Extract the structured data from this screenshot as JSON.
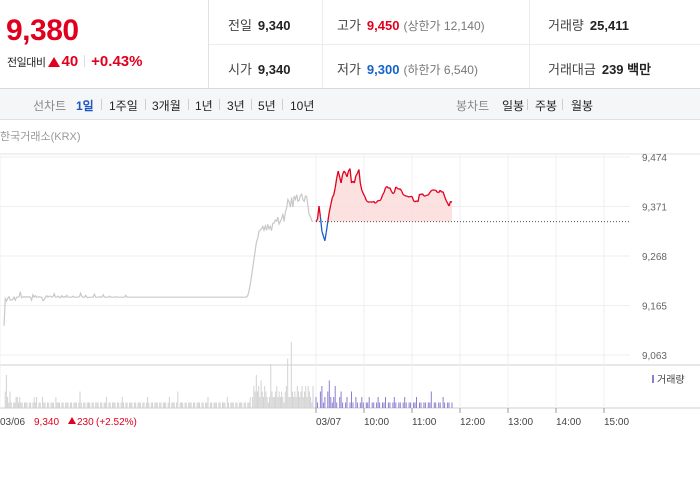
{
  "quote": {
    "price": "9,380",
    "change_label": "전일대비",
    "change_value": "40",
    "change_rate": "+0.43%",
    "prev_close_label": "전일",
    "prev_close": "9,340",
    "open_label": "시가",
    "open": "9,340",
    "high_label": "고가",
    "high": "9,450",
    "upper_limit": "(상한가 12,140)",
    "low_label": "저가",
    "low": "9,300",
    "lower_limit": "(하한가 6,540)",
    "volume_label": "거래량",
    "volume": "25,411",
    "value_label": "거래대금",
    "trade_value": "239 백만",
    "colors": {
      "up": "#e0001e",
      "down": "#1563c7"
    }
  },
  "tabs": {
    "line_label": "선차트",
    "periods": [
      "1일",
      "1주일",
      "3개월",
      "1년",
      "3년",
      "5년",
      "10년"
    ],
    "active_period": "1일",
    "candle_label": "봉차트",
    "candles": [
      "일봉",
      "주봉",
      "월봉"
    ]
  },
  "chart_data": {
    "type": "line",
    "source": "한국거래소(KRX)",
    "yticks": [
      "9,474",
      "9,371",
      "9,268",
      "9,165",
      "9,063"
    ],
    "ylim": [
      9063,
      9474
    ],
    "prev_close": 9340,
    "xticks": [
      "03/07",
      "10:00",
      "11:00",
      "12:00",
      "13:00",
      "14:00",
      "15:00"
    ],
    "prev_day": {
      "date": "03/06",
      "summary_price": "9,340",
      "summary_change": "230",
      "summary_rate": "(+2.52%)",
      "price_series": [
        9124,
        9180,
        9175,
        9181,
        9184,
        9177,
        9177,
        9179,
        9183,
        9177,
        9183,
        9183,
        9184,
        9194,
        9182,
        9183,
        9184,
        9183,
        9184,
        9183,
        9184,
        9183,
        9177,
        9188,
        9183,
        9186,
        9183,
        9183,
        9184,
        9183,
        9183,
        9176,
        9178,
        9183,
        9186,
        9183,
        9185,
        9185,
        9183,
        9184,
        9190,
        9183,
        9183,
        9185,
        9183,
        9182,
        9186,
        9183,
        9184,
        9183,
        9187,
        9183,
        9183,
        9183,
        9183,
        9185,
        9183,
        9183,
        9183,
        9183,
        9184,
        9191,
        9184,
        9183,
        9183,
        9187,
        9183,
        9182,
        9183,
        9183,
        9183,
        9183,
        9189,
        9183,
        9183,
        9183,
        9184,
        9183,
        9183,
        9188,
        9183,
        9183,
        9183,
        9183,
        9185,
        9183,
        9183,
        9183,
        9183,
        9184,
        9183,
        9183,
        9183,
        9183,
        9183,
        9183,
        9183,
        9187,
        9183,
        9183,
        9183,
        9183,
        9183,
        9183,
        9183,
        9183,
        9183,
        9183,
        9183,
        9183,
        9183,
        9183,
        9183,
        9183,
        9183,
        9183,
        9183,
        9183,
        9183,
        9183,
        9183,
        9183,
        9183,
        9183,
        9183,
        9183,
        9183,
        9183,
        9183,
        9183,
        9183,
        9183,
        9183,
        9183,
        9183,
        9183,
        9183,
        9183,
        9183,
        9183,
        9183,
        9183,
        9183,
        9183,
        9183,
        9183,
        9183,
        9183,
        9183,
        9183,
        9183,
        9183,
        9183,
        9183,
        9183,
        9183,
        9183,
        9183,
        9183,
        9183,
        9183,
        9183,
        9183,
        9183,
        9183,
        9183,
        9183,
        9183,
        9183,
        9183,
        9183,
        9183,
        9183,
        9183,
        9183,
        9183,
        9183,
        9183,
        9183,
        9183,
        9183,
        9183,
        9183,
        9183,
        9183,
        9183,
        9183,
        9183,
        9183,
        9183,
        9183,
        9183,
        9183,
        9183,
        9186,
        9195,
        9209,
        9226,
        9244,
        9262,
        9280,
        9298,
        9305,
        9320,
        9322,
        9325,
        9330,
        9322,
        9331,
        9322,
        9334,
        9325,
        9330,
        9321,
        9336,
        9337,
        9343,
        9341,
        9349,
        9335,
        9340,
        9346,
        9356,
        9340,
        9360,
        9368,
        9386,
        9381,
        9370,
        9390,
        9370,
        9393,
        9386,
        9396,
        9382,
        9384,
        9394,
        9397,
        9385,
        9382,
        9393,
        9392,
        9371,
        9354,
        9350,
        9342,
        9340
      ],
      "volume_series": [
        0,
        3,
        6,
        2,
        1,
        3,
        1,
        0,
        1,
        1,
        2,
        2,
        1,
        2,
        1,
        1,
        0,
        1,
        1,
        1,
        0,
        1,
        1,
        0,
        1,
        2,
        1,
        2,
        0,
        1,
        1,
        0,
        2,
        1,
        1,
        0,
        1,
        1,
        0,
        1,
        1,
        1,
        0,
        2,
        1,
        1,
        1,
        0,
        1,
        1,
        0,
        1,
        1,
        1,
        0,
        1,
        1,
        0,
        1,
        1,
        1,
        0,
        1,
        3,
        1,
        0,
        1,
        1,
        0,
        1,
        1,
        1,
        0,
        1,
        1,
        0,
        1,
        1,
        1,
        0,
        1,
        1,
        0,
        1,
        1,
        2,
        0,
        1,
        1,
        0,
        1,
        1,
        1,
        0,
        1,
        1,
        0,
        1,
        2,
        1,
        0,
        1,
        1,
        0,
        1,
        1,
        1,
        0,
        1,
        1,
        0,
        1,
        1,
        1,
        0,
        1,
        1,
        0,
        1,
        2,
        1,
        0,
        1,
        1,
        0,
        1,
        1,
        1,
        0,
        1,
        1,
        0,
        1,
        1,
        1,
        0,
        1,
        2,
        0,
        1,
        1,
        1,
        0,
        1,
        3,
        0,
        1,
        1,
        1,
        0,
        1,
        1,
        0,
        1,
        1,
        1,
        0,
        1,
        1,
        0,
        1,
        1,
        1,
        0,
        1,
        1,
        0,
        1,
        1,
        2,
        0,
        1,
        1,
        0,
        1,
        1,
        1,
        0,
        1,
        1,
        0,
        1,
        1,
        1,
        0,
        2,
        1,
        0,
        1,
        1,
        1,
        0,
        1,
        1,
        0,
        1,
        1,
        1,
        0,
        1,
        1,
        0,
        1,
        1,
        2,
        0,
        2,
        4,
        3,
        6,
        3,
        4,
        2,
        5,
        3,
        2,
        4,
        3,
        2,
        1,
        2,
        8,
        3,
        2,
        2,
        3,
        4,
        2,
        3,
        2,
        3,
        2,
        1,
        3,
        4,
        9,
        2,
        2,
        12,
        3,
        2,
        3,
        2,
        4,
        3,
        2,
        3,
        4,
        2,
        3,
        4,
        2,
        4,
        3,
        2,
        1,
        4
      ]
    },
    "today": {
      "price_series": [
        9340,
        9345,
        9372,
        9350,
        9320,
        9310,
        9300,
        9318,
        9340,
        9360,
        9375,
        9390,
        9395,
        9410,
        9430,
        9445,
        9432,
        9420,
        9438,
        9445,
        9440,
        9433,
        9445,
        9450,
        9420,
        9424,
        9420,
        9435,
        9440,
        9448,
        9420,
        9405,
        9398,
        9392,
        9384,
        9381,
        9380,
        9381,
        9380,
        9382,
        9378,
        9380,
        9384,
        9383,
        9386,
        9395,
        9400,
        9410,
        9413,
        9409,
        9410,
        9403,
        9398,
        9400,
        9412,
        9409,
        9407,
        9408,
        9403,
        9396,
        9394,
        9393,
        9392,
        9391,
        9392,
        9392,
        9383,
        9381,
        9383,
        9381,
        9397,
        9396,
        9398,
        9393,
        9393,
        9395,
        9395,
        9400,
        9404,
        9406,
        9405,
        9405,
        9401,
        9400,
        9405,
        9401,
        9402,
        9392,
        9384,
        9378,
        9372,
        9382,
        9380
      ],
      "volume_series": [
        2,
        1,
        0,
        3,
        4,
        1,
        2,
        0,
        3,
        5,
        2,
        1,
        2,
        4,
        1,
        0,
        2,
        3,
        1,
        0,
        1,
        2,
        0,
        1,
        3,
        1,
        0,
        2,
        1,
        0,
        1,
        2,
        1,
        0,
        1,
        1,
        2,
        0,
        1,
        1,
        0,
        1,
        2,
        1,
        0,
        1,
        1,
        2,
        0,
        1,
        1,
        0,
        1,
        2,
        1,
        0,
        1,
        1,
        0,
        1,
        2,
        1,
        0,
        1,
        1,
        0,
        1,
        1,
        2,
        0,
        1,
        1,
        0,
        1,
        1,
        0,
        1,
        1,
        3,
        0,
        1,
        1,
        0,
        1,
        1,
        0,
        2,
        1,
        0,
        1,
        1,
        0,
        1
      ],
      "volume_legend": "거래량"
    }
  }
}
